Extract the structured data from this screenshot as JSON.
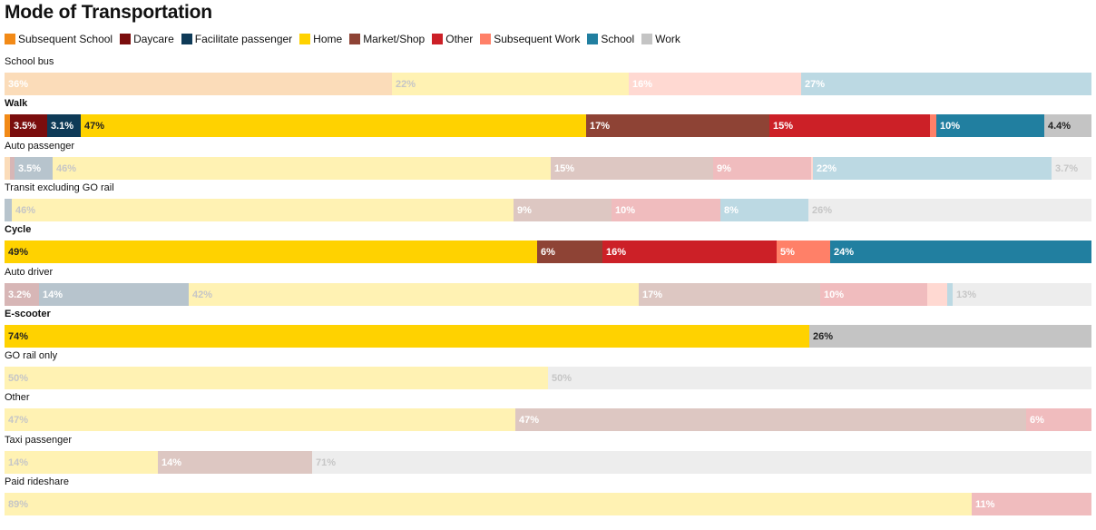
{
  "title": "Mode of Transportation",
  "legend": [
    {
      "key": "subsequent_school",
      "label": "Subsequent School",
      "color": "#F28A17"
    },
    {
      "key": "daycare",
      "label": "Daycare",
      "color": "#7A0D0D"
    },
    {
      "key": "facilitate_passenger",
      "label": "Facilitate passenger",
      "color": "#0E3A57"
    },
    {
      "key": "home",
      "label": "Home",
      "color": "#FFD200"
    },
    {
      "key": "market_shop",
      "label": "Market/Shop",
      "color": "#8E4335"
    },
    {
      "key": "other",
      "label": "Other",
      "color": "#CC2027"
    },
    {
      "key": "subsequent_work",
      "label": "Subsequent Work",
      "color": "#FF8068"
    },
    {
      "key": "school",
      "label": "School",
      "color": "#217FA0"
    },
    {
      "key": "work",
      "label": "Work",
      "color": "#C4C4C4"
    }
  ],
  "chart_data": {
    "type": "bar",
    "orientation": "horizontal",
    "stacked": true,
    "normalized_percent": true,
    "title": "Mode of Transportation",
    "xlim": [
      0,
      100
    ],
    "categories": [
      {
        "name": "School bus",
        "highlighted": false,
        "segments": [
          {
            "series": "subsequent_school",
            "value": 36,
            "label": "36%"
          },
          {
            "series": "home",
            "value": 22,
            "label": "22%"
          },
          {
            "series": "subsequent_work",
            "value": 16,
            "label": "16%"
          },
          {
            "series": "school",
            "value": 27,
            "label": "27%"
          }
        ]
      },
      {
        "name": "Walk",
        "highlighted": true,
        "segments": [
          {
            "series": "subsequent_school",
            "value": 0.5,
            "label": ""
          },
          {
            "series": "daycare",
            "value": 3.5,
            "label": "3.5%"
          },
          {
            "series": "facilitate_passenger",
            "value": 3.1,
            "label": "3.1%"
          },
          {
            "series": "home",
            "value": 47,
            "label": "47%"
          },
          {
            "series": "market_shop",
            "value": 17,
            "label": "17%"
          },
          {
            "series": "other",
            "value": 15,
            "label": "15%"
          },
          {
            "series": "subsequent_work",
            "value": 0.6,
            "label": ""
          },
          {
            "series": "school",
            "value": 10,
            "label": "10%"
          },
          {
            "series": "work",
            "value": 4.4,
            "label": "4.4%"
          }
        ]
      },
      {
        "name": "Auto passenger",
        "highlighted": false,
        "segments": [
          {
            "series": "subsequent_school",
            "value": 0.5,
            "label": ""
          },
          {
            "series": "daycare",
            "value": 0.4,
            "label": ""
          },
          {
            "series": "facilitate_passenger",
            "value": 3.5,
            "label": "3.5%"
          },
          {
            "series": "home",
            "value": 46,
            "label": "46%"
          },
          {
            "series": "market_shop",
            "value": 15,
            "label": "15%"
          },
          {
            "series": "other",
            "value": 9,
            "label": "9%"
          },
          {
            "series": "subsequent_work",
            "value": 0.2,
            "label": ""
          },
          {
            "series": "school",
            "value": 22,
            "label": "22%"
          },
          {
            "series": "work",
            "value": 3.7,
            "label": "3.7%"
          }
        ]
      },
      {
        "name": "Transit excluding GO rail",
        "highlighted": false,
        "segments": [
          {
            "series": "facilitate_passenger",
            "value": 0.7,
            "label": ""
          },
          {
            "series": "home",
            "value": 46,
            "label": "46%"
          },
          {
            "series": "market_shop",
            "value": 9,
            "label": "9%"
          },
          {
            "series": "other",
            "value": 10,
            "label": "10%"
          },
          {
            "series": "school",
            "value": 8,
            "label": "8%"
          },
          {
            "series": "work",
            "value": 26,
            "label": "26%"
          }
        ]
      },
      {
        "name": "Cycle",
        "highlighted": true,
        "segments": [
          {
            "series": "home",
            "value": 49,
            "label": "49%"
          },
          {
            "series": "market_shop",
            "value": 6,
            "label": "6%"
          },
          {
            "series": "other",
            "value": 16,
            "label": "16%"
          },
          {
            "series": "subsequent_work",
            "value": 5,
            "label": "5%"
          },
          {
            "series": "school",
            "value": 24,
            "label": "24%"
          }
        ]
      },
      {
        "name": "Auto driver",
        "highlighted": false,
        "segments": [
          {
            "series": "daycare",
            "value": 3.2,
            "label": "3.2%"
          },
          {
            "series": "facilitate_passenger",
            "value": 14,
            "label": "14%"
          },
          {
            "series": "home",
            "value": 42,
            "label": "42%"
          },
          {
            "series": "market_shop",
            "value": 17,
            "label": "17%"
          },
          {
            "series": "other",
            "value": 10,
            "label": "10%"
          },
          {
            "series": "subsequent_work",
            "value": 1.8,
            "label": ""
          },
          {
            "series": "school",
            "value": 0.5,
            "label": ""
          },
          {
            "series": "work",
            "value": 13,
            "label": "13%"
          }
        ]
      },
      {
        "name": "E-scooter",
        "highlighted": true,
        "segments": [
          {
            "series": "home",
            "value": 74,
            "label": "74%"
          },
          {
            "series": "work",
            "value": 26,
            "label": "26%"
          }
        ]
      },
      {
        "name": "GO rail only",
        "highlighted": false,
        "segments": [
          {
            "series": "home",
            "value": 50,
            "label": "50%"
          },
          {
            "series": "work",
            "value": 50,
            "label": "50%"
          }
        ]
      },
      {
        "name": "Other",
        "highlighted": false,
        "segments": [
          {
            "series": "home",
            "value": 47,
            "label": "47%"
          },
          {
            "series": "market_shop",
            "value": 47,
            "label": "47%"
          },
          {
            "series": "other",
            "value": 6,
            "label": "6%"
          }
        ]
      },
      {
        "name": "Taxi passenger",
        "highlighted": false,
        "segments": [
          {
            "series": "home",
            "value": 14,
            "label": "14%"
          },
          {
            "series": "market_shop",
            "value": 14,
            "label": "14%"
          },
          {
            "series": "work",
            "value": 71,
            "label": "71%"
          }
        ]
      },
      {
        "name": "Paid rideshare",
        "highlighted": false,
        "segments": [
          {
            "series": "home",
            "value": 89,
            "label": "89%"
          },
          {
            "series": "other",
            "value": 11,
            "label": "11%"
          }
        ]
      }
    ]
  }
}
